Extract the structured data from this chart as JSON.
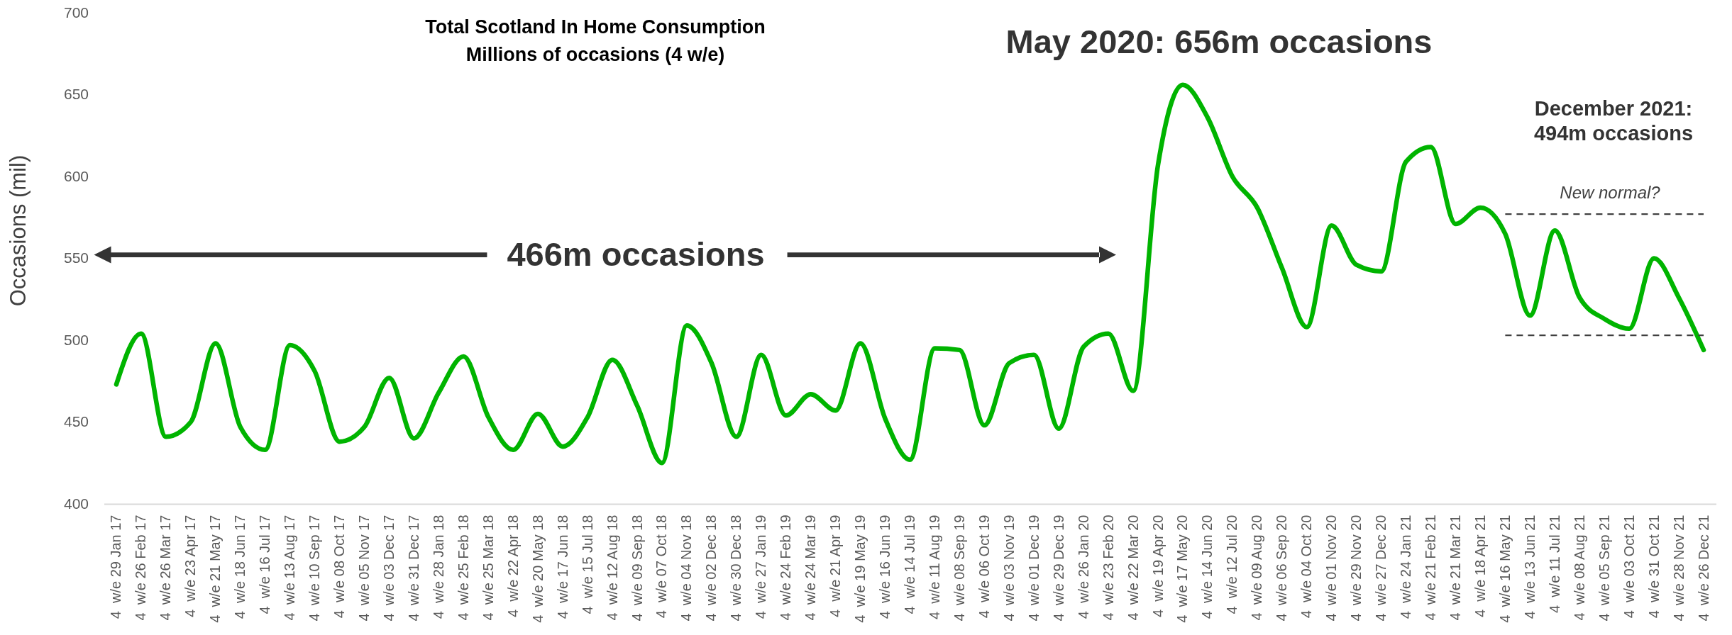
{
  "chart_data": {
    "type": "line",
    "title": "Total Scotland In Home Consumption",
    "subtitle": "Millions of occasions (4 w/e)",
    "ylabel": "Occasions (mil)",
    "categories": [
      "4  w/e 29 Jan 17",
      "4  w/e 26 Feb 17",
      "4  w/e 26 Mar 17",
      "4  w/e 23 Apr 17",
      "4  w/e 21 May 17",
      "4  w/e 18 Jun 17",
      "4  w/e 16 Jul 17",
      "4  w/e 13 Aug 17",
      "4  w/e 10 Sep 17",
      "4  w/e 08 Oct 17",
      "4  w/e 05 Nov 17",
      "4  w/e 03 Dec 17",
      "4  w/e 31 Dec 17",
      "4  w/e 28 Jan 18",
      "4  w/e 25 Feb 18",
      "4  w/e 25 Mar 18",
      "4  w/e 22 Apr 18",
      "4  w/e 20 May 18",
      "4  w/e 17 Jun 18",
      "4  w/e 15 Jul 18",
      "4  w/e 12 Aug 18",
      "4  w/e 09 Sep 18",
      "4  w/e 07 Oct 18",
      "4  w/e 04 Nov 18",
      "4  w/e 02 Dec 18",
      "4  w/e 30 Dec 18",
      "4  w/e 27 Jan 19",
      "4  w/e 24 Feb 19",
      "4  w/e 24 Mar 19",
      "4  w/e 21 Apr 19",
      "4  w/e 19 May 19",
      "4  w/e 16 Jun 19",
      "4  w/e 14 Jul 19",
      "4  w/e 11 Aug 19",
      "4  w/e 08 Sep 19",
      "4  w/e 06 Oct 19",
      "4  w/e 03 Nov 19",
      "4  w/e 01 Dec 19",
      "4  w/e 29 Dec 19",
      "4  w/e 26 Jan 20",
      "4  w/e 23 Feb 20",
      "4  w/e 22 Mar 20",
      "4  w/e 19 Apr 20",
      "4  w/e 17 May 20",
      "4  w/e 14 Jun 20",
      "4  w/e 12 Jul 20",
      "4  w/e 09 Aug 20",
      "4  w/e 06 Sep 20",
      "4  w/e 04 Oct 20",
      "4  w/e 01 Nov 20",
      "4  w/e 29 Nov 20",
      "4  w/e 27 Dec 20",
      "4  w/e 24 Jan 21",
      "4  w/e 21 Feb 21",
      "4  w/e 21 Mar 21",
      "4  w/e 18 Apr 21",
      "4  w/e 16 May 21",
      "4  w/e 13 Jun 21",
      "4  w/e 11 Jul 21",
      "4  w/e 08 Aug 21",
      "4  w/e 05 Sep 21",
      "4  w/e 03 Oct 21",
      "4  w/e 31 Oct 21",
      "4  w/e 28 Nov 21",
      "4  w/e 26 Dec 21"
    ],
    "series": [
      {
        "color": "#00b400",
        "values": [
          473,
          504,
          441,
          450,
          498,
          447,
          433,
          497,
          481,
          438,
          447,
          477,
          440,
          468,
          490,
          453,
          433,
          455,
          435,
          453,
          488,
          460,
          425,
          509,
          486,
          441,
          491,
          454,
          467,
          457,
          498,
          452,
          427,
          495,
          494,
          448,
          486,
          491,
          446,
          496,
          504,
          469,
          607,
          656,
          636,
          600,
          581,
          544,
          508,
          570,
          546,
          542,
          609,
          618,
          571,
          581,
          565,
          515,
          567,
          526,
          513,
          507,
          550,
          526,
          494
        ]
      },
      {
        "color": "#404040",
        "line_style": "dashed",
        "values": [
          null,
          null,
          null,
          null,
          null,
          null,
          null,
          null,
          null,
          null,
          null,
          null,
          null,
          null,
          null,
          null,
          null,
          null,
          null,
          null,
          null,
          null,
          null,
          null,
          null,
          null,
          null,
          null,
          null,
          null,
          null,
          null,
          null,
          null,
          null,
          null,
          null,
          null,
          null,
          null,
          null,
          null,
          null,
          null,
          null,
          null,
          null,
          null,
          null,
          null,
          null,
          null,
          null,
          null,
          null,
          null,
          577,
          577,
          577,
          577,
          577,
          577,
          577,
          577,
          577
        ]
      },
      {
        "color": "#404040",
        "line_style": "dashed",
        "values": [
          null,
          null,
          null,
          null,
          null,
          null,
          null,
          null,
          null,
          null,
          null,
          null,
          null,
          null,
          null,
          null,
          null,
          null,
          null,
          null,
          null,
          null,
          null,
          null,
          null,
          null,
          null,
          null,
          null,
          null,
          null,
          null,
          null,
          null,
          null,
          null,
          null,
          null,
          null,
          null,
          null,
          null,
          null,
          null,
          null,
          null,
          null,
          null,
          null,
          null,
          null,
          null,
          null,
          null,
          null,
          null,
          503,
          503,
          503,
          503,
          503,
          503,
          503,
          503,
          503
        ]
      }
    ],
    "ylim": [
      400,
      700
    ],
    "yticks": [
      400,
      450,
      500,
      550,
      600,
      650,
      700
    ],
    "annotations": [
      "May 2020: 656m occasions",
      "December 2021:\n494m occasions",
      "New normal?",
      "466m occasions"
    ]
  }
}
